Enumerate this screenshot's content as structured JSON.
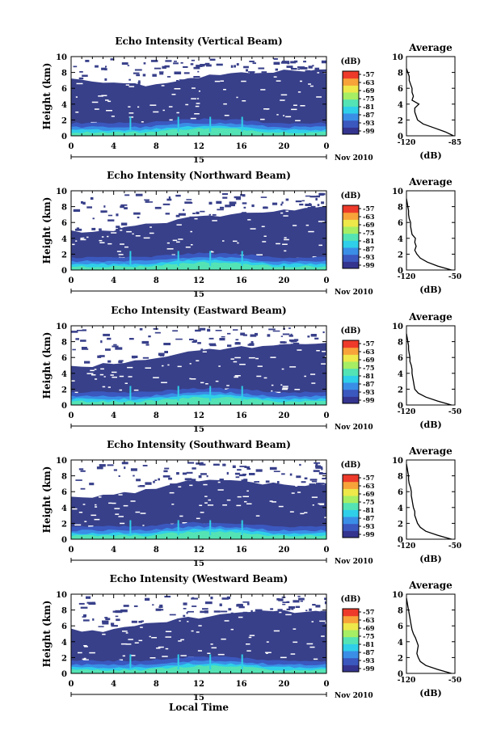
{
  "colors": {
    "background": "#ffffff",
    "echo_fill": "#38408a",
    "colorbar": [
      "#34348f",
      "#3b58bf",
      "#3a8ee6",
      "#2fcfe9",
      "#54e3b4",
      "#a6ee64",
      "#eee84a",
      "#f7a33a",
      "#ee3a2a"
    ]
  },
  "chart_data": [
    {
      "type": "heatmap",
      "title": "Echo Intensity (Vertical Beam)",
      "ylabel": "Height (km)",
      "xlabel": "",
      "x_ticks": [
        "0",
        "4",
        "8",
        "12",
        "16",
        "20",
        "0"
      ],
      "y_ticks": [
        "0",
        "2",
        "4",
        "6",
        "8",
        "10"
      ],
      "xlim": [
        0,
        24
      ],
      "ylim": [
        0,
        10
      ],
      "date_ticks": [
        "15"
      ],
      "date_label": "Nov 2010",
      "colorbar": {
        "unit": "(dB)",
        "ticks": [
          "-57",
          "-63",
          "-69",
          "-75",
          "-81",
          "-87",
          "-93",
          "-99"
        ]
      },
      "top_height_km": [
        7.3,
        7.0,
        6.9,
        6.9,
        6.8,
        6.7,
        6.5,
        6.4,
        6.6,
        6.8,
        7.0,
        7.2,
        7.4,
        7.6,
        7.7,
        7.8,
        7.9,
        8.0,
        8.1,
        8.1,
        8.2,
        8.2,
        8.2,
        8.3,
        8.3
      ],
      "profile": {
        "title": "Average",
        "xlabel": "(dB)",
        "x_ticks": [
          "-120",
          "-85"
        ],
        "xlim": [
          -120,
          -85
        ],
        "y_ticks": [
          "0",
          "2",
          "4",
          "6",
          "8",
          "10"
        ],
        "height_km": [
          0,
          0.5,
          1,
          1.5,
          2,
          2.5,
          3,
          3.5,
          4,
          4.5,
          5,
          5.5,
          6,
          6.5,
          7,
          7.5,
          8,
          8.5
        ],
        "db": [
          -86,
          -92,
          -100,
          -108,
          -112,
          -113,
          -114,
          -114,
          -111,
          -116,
          -115,
          -116,
          -116,
          -117,
          -118,
          -118,
          -119,
          -120
        ]
      }
    },
    {
      "type": "heatmap",
      "title": "Echo Intensity (Northward Beam)",
      "ylabel": "Height (km)",
      "xlabel": "",
      "x_ticks": [
        "0",
        "4",
        "8",
        "12",
        "16",
        "20",
        "0"
      ],
      "y_ticks": [
        "0",
        "2",
        "4",
        "6",
        "8",
        "10"
      ],
      "xlim": [
        0,
        24
      ],
      "ylim": [
        0,
        10
      ],
      "date_ticks": [
        "15"
      ],
      "date_label": "Nov 2010",
      "colorbar": {
        "unit": "(dB)",
        "ticks": [
          "-57",
          "-63",
          "-69",
          "-75",
          "-81",
          "-87",
          "-93",
          "-99"
        ]
      },
      "top_height_km": [
        5.0,
        4.8,
        4.7,
        4.8,
        5.0,
        5.3,
        5.5,
        5.7,
        6.0,
        6.1,
        6.3,
        6.5,
        6.6,
        6.8,
        6.9,
        7.0,
        7.1,
        7.2,
        7.3,
        7.5,
        7.6,
        7.7,
        7.8,
        7.9,
        8.0
      ],
      "profile": {
        "title": "Average",
        "xlabel": "(dB)",
        "x_ticks": [
          "-120",
          "-50"
        ],
        "xlim": [
          -120,
          -50
        ],
        "y_ticks": [
          "0",
          "2",
          "4",
          "6",
          "8",
          "10"
        ],
        "height_km": [
          0,
          0.5,
          1,
          1.5,
          2,
          2.5,
          3,
          3.5,
          4,
          4.5,
          5,
          5.5,
          6,
          6.5,
          7,
          7.5,
          8,
          8.5,
          9
        ],
        "db": [
          -55,
          -75,
          -90,
          -100,
          -105,
          -108,
          -106,
          -108,
          -107,
          -112,
          -113,
          -114,
          -114,
          -116,
          -117,
          -117,
          -118,
          -119,
          -120
        ]
      }
    },
    {
      "type": "heatmap",
      "title": "Echo Intensity (Eastward Beam)",
      "ylabel": "Height (km)",
      "xlabel": "",
      "x_ticks": [
        "0",
        "4",
        "8",
        "12",
        "16",
        "20",
        "0"
      ],
      "y_ticks": [
        "0",
        "2",
        "4",
        "6",
        "8",
        "10"
      ],
      "xlim": [
        0,
        24
      ],
      "ylim": [
        0,
        10
      ],
      "date_ticks": [
        "15"
      ],
      "date_label": "Nov 2010",
      "colorbar": {
        "unit": "(dB)",
        "ticks": [
          "-57",
          "-63",
          "-69",
          "-75",
          "-81",
          "-87",
          "-93",
          "-99"
        ]
      },
      "top_height_km": [
        5.0,
        5.0,
        4.9,
        5.1,
        5.3,
        5.5,
        5.6,
        5.8,
        6.0,
        6.3,
        6.5,
        6.6,
        6.8,
        7.0,
        7.1,
        7.2,
        7.3,
        7.4,
        7.5,
        7.5,
        7.6,
        7.7,
        7.8,
        7.8,
        7.9
      ],
      "profile": {
        "title": "Average",
        "xlabel": "(dB)",
        "x_ticks": [
          "-120",
          "-50"
        ],
        "xlim": [
          -120,
          -50
        ],
        "y_ticks": [
          "0",
          "2",
          "4",
          "6",
          "8",
          "10"
        ],
        "height_km": [
          0,
          0.5,
          1,
          1.5,
          2,
          2.5,
          3,
          3.5,
          4,
          4.5,
          5,
          5.5,
          6,
          6.5,
          7,
          7.5,
          8,
          8.5,
          9
        ],
        "db": [
          -55,
          -75,
          -92,
          -103,
          -108,
          -109,
          -110,
          -111,
          -112,
          -112,
          -113,
          -115,
          -115,
          -116,
          -117,
          -117,
          -118,
          -119,
          -120
        ]
      }
    },
    {
      "type": "heatmap",
      "title": "Echo Intensity (Southward Beam)",
      "ylabel": "Height (km)",
      "xlabel": "",
      "x_ticks": [
        "0",
        "4",
        "8",
        "12",
        "16",
        "20",
        "0"
      ],
      "y_ticks": [
        "0",
        "2",
        "4",
        "6",
        "8",
        "10"
      ],
      "xlim": [
        0,
        24
      ],
      "ylim": [
        0,
        10
      ],
      "date_ticks": [
        "15"
      ],
      "date_label": "Nov 2010",
      "colorbar": {
        "unit": "(dB)",
        "ticks": [
          "-57",
          "-63",
          "-69",
          "-75",
          "-81",
          "-87",
          "-93",
          "-99"
        ]
      },
      "top_height_km": [
        5.3,
        5.3,
        5.4,
        5.5,
        5.7,
        5.9,
        6.0,
        6.2,
        6.5,
        6.7,
        7.0,
        7.3,
        7.5,
        7.5,
        7.4,
        7.3,
        7.3,
        7.2,
        7.1,
        7.0,
        6.9,
        6.8,
        6.8,
        6.8,
        6.9
      ],
      "profile": {
        "title": "Average",
        "xlabel": "(dB)",
        "x_ticks": [
          "-120",
          "-50"
        ],
        "xlim": [
          -120,
          -50
        ],
        "y_ticks": [
          "0",
          "2",
          "4",
          "6",
          "8",
          "10"
        ],
        "height_km": [
          0,
          0.5,
          1,
          1.5,
          2,
          2.5,
          3,
          3.5,
          4,
          4.5,
          5,
          5.5,
          6,
          6.5,
          7,
          7.5,
          8,
          8.5,
          9,
          9.5
        ],
        "db": [
          -55,
          -75,
          -92,
          -100,
          -104,
          -106,
          -108,
          -108,
          -110,
          -111,
          -112,
          -113,
          -113,
          -114,
          -116,
          -117,
          -117,
          -118,
          -119,
          -120
        ]
      }
    },
    {
      "type": "heatmap",
      "title": "Echo Intensity (Westward Beam)",
      "ylabel": "Height (km)",
      "xlabel": "Local Time",
      "x_ticks": [
        "0",
        "4",
        "8",
        "12",
        "16",
        "20",
        "0"
      ],
      "y_ticks": [
        "0",
        "2",
        "4",
        "6",
        "8",
        "10"
      ],
      "xlim": [
        0,
        24
      ],
      "ylim": [
        0,
        10
      ],
      "date_ticks": [
        "15"
      ],
      "date_label": "Nov 2010",
      "colorbar": {
        "unit": "(dB)",
        "ticks": [
          "-57",
          "-63",
          "-69",
          "-75",
          "-81",
          "-87",
          "-93",
          "-99"
        ]
      },
      "top_height_km": [
        5.5,
        5.3,
        5.3,
        5.4,
        5.6,
        5.8,
        6.0,
        6.2,
        6.4,
        6.6,
        6.8,
        7.0,
        7.1,
        7.2,
        7.3,
        7.5,
        7.6,
        7.7,
        7.8,
        7.8,
        7.8,
        7.8,
        7.8,
        7.7,
        7.6
      ],
      "profile": {
        "title": "Average",
        "xlabel": "(dB)",
        "x_ticks": [
          "-120",
          "-50"
        ],
        "xlim": [
          -120,
          -50
        ],
        "y_ticks": [
          "0",
          "2",
          "4",
          "6",
          "8",
          "10"
        ],
        "height_km": [
          0,
          0.5,
          1,
          1.5,
          2,
          2.5,
          3,
          3.5,
          4,
          4.5,
          5,
          5.5,
          6,
          6.5,
          7,
          7.5,
          8,
          8.5,
          9,
          9.5
        ],
        "db": [
          -55,
          -75,
          -92,
          -100,
          -103,
          -105,
          -104,
          -103,
          -105,
          -107,
          -110,
          -112,
          -113,
          -114,
          -115,
          -116,
          -117,
          -118,
          -119,
          -120
        ]
      }
    }
  ]
}
